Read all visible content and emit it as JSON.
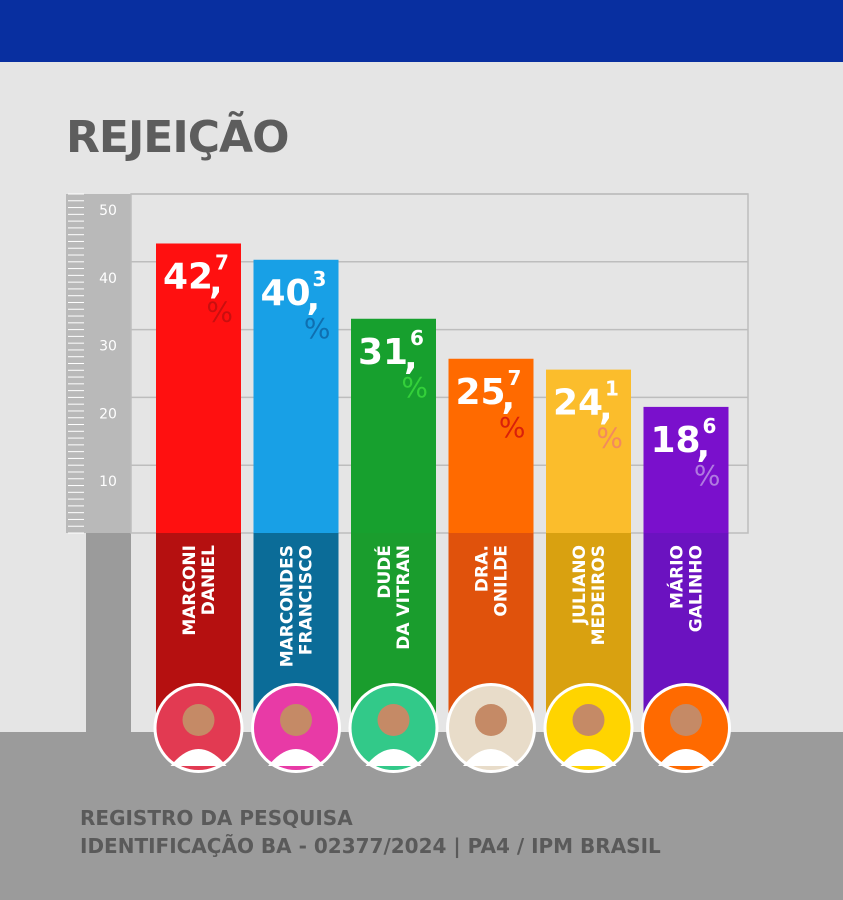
{
  "chart_data": {
    "type": "bar",
    "title": "REJEIÇÃO",
    "categories": [
      [
        "MARCONI",
        "DANIEL"
      ],
      [
        "MARCONDES",
        "FRANCISCO"
      ],
      [
        "DUDÉ",
        "DA VITRAN"
      ],
      [
        "DRA.",
        "ONILDE"
      ],
      [
        "JULIANO",
        "MEDEIROS"
      ],
      [
        "MÁRIO",
        "GALINHO"
      ]
    ],
    "values": [
      42.7,
      40.3,
      31.6,
      25.7,
      24.1,
      18.6
    ],
    "value_labels": [
      {
        "int": "42",
        "sep": ",",
        "dec": "7",
        "pct": "%"
      },
      {
        "int": "40",
        "sep": ",",
        "dec": "3",
        "pct": "%"
      },
      {
        "int": "31",
        "sep": ",",
        "dec": "6",
        "pct": "%"
      },
      {
        "int": "25",
        "sep": ",",
        "dec": "7",
        "pct": "%"
      },
      {
        "int": "24",
        "sep": ",",
        "dec": "1",
        "pct": "%"
      },
      {
        "int": "18",
        "sep": ",",
        "dec": "6",
        "pct": "%"
      }
    ],
    "ylim": [
      0,
      50
    ],
    "yticks": [
      10,
      20,
      30,
      40,
      50
    ],
    "grid": true,
    "bar_colors": [
      "#ff1010",
      "#18a0e6",
      "#17a02e",
      "#ff6a00",
      "#fbbd2c",
      "#7a10cc"
    ],
    "label_colors": [
      "#b51010",
      "#0b6c98",
      "#1a9d2d",
      "#e0520c",
      "#d9a110",
      "#6b12c0"
    ],
    "pct_colors": [
      "#c90f0f",
      "#0f6fb0",
      "#34d03a",
      "#d9200a",
      "#f28a5e",
      "#b07ae0"
    ],
    "avatar_colors": [
      "#e23a52",
      "#e83aa6",
      "#32c989",
      "#e8dcc9",
      "#ffd400",
      "#ff6a00"
    ]
  },
  "footer": {
    "line1": "REGISTRO DA PESQUISA",
    "line2": "IDENTIFICAÇÃO BA - 02377/2024 | PA4 / IPM BRASIL"
  }
}
